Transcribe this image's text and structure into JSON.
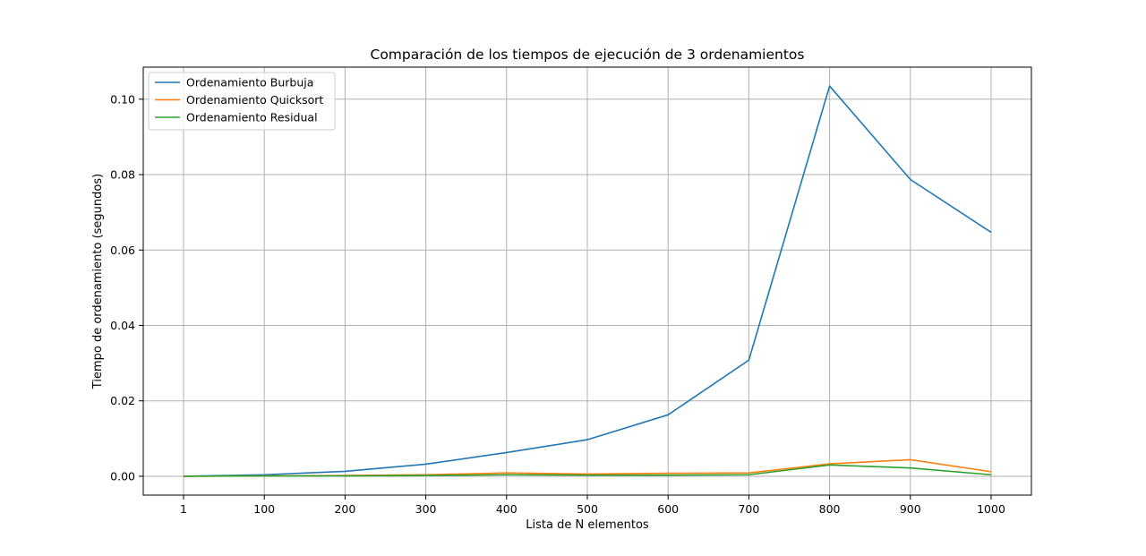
{
  "chart_data": {
    "type": "line",
    "title": "Comparación de los tiempos de ejecución de 3 ordenamientos",
    "xlabel": "Lista de N elementos",
    "ylabel": "Tiempo de ordenamiento (segundos)",
    "categories": [
      "1",
      "100",
      "200",
      "300",
      "400",
      "500",
      "600",
      "700",
      "800",
      "900",
      "1000"
    ],
    "yticks": [
      "0.00",
      "0.02",
      "0.04",
      "0.06",
      "0.08",
      "0.10"
    ],
    "ylim": [
      -0.005,
      0.1085
    ],
    "grid": true,
    "legend_position": "top-left",
    "series": [
      {
        "name": "Ordenamiento Burbuja",
        "color": "#1f77b4",
        "values": [
          0.0,
          0.0004,
          0.0013,
          0.0032,
          0.0063,
          0.0097,
          0.0163,
          0.0308,
          0.1035,
          0.0787,
          0.0647
        ]
      },
      {
        "name": "Ordenamiento Quicksort",
        "color": "#ff7f0e",
        "values": [
          0.0,
          0.0001,
          0.0002,
          0.0004,
          0.0009,
          0.0006,
          0.0008,
          0.0009,
          0.0033,
          0.0044,
          0.0012
        ]
      },
      {
        "name": "Ordenamiento Residual",
        "color": "#2ca02c",
        "values": [
          0.0,
          0.0001,
          0.0001,
          0.0002,
          0.0004,
          0.0003,
          0.0003,
          0.0004,
          0.003,
          0.0022,
          0.0004
        ]
      }
    ]
  }
}
